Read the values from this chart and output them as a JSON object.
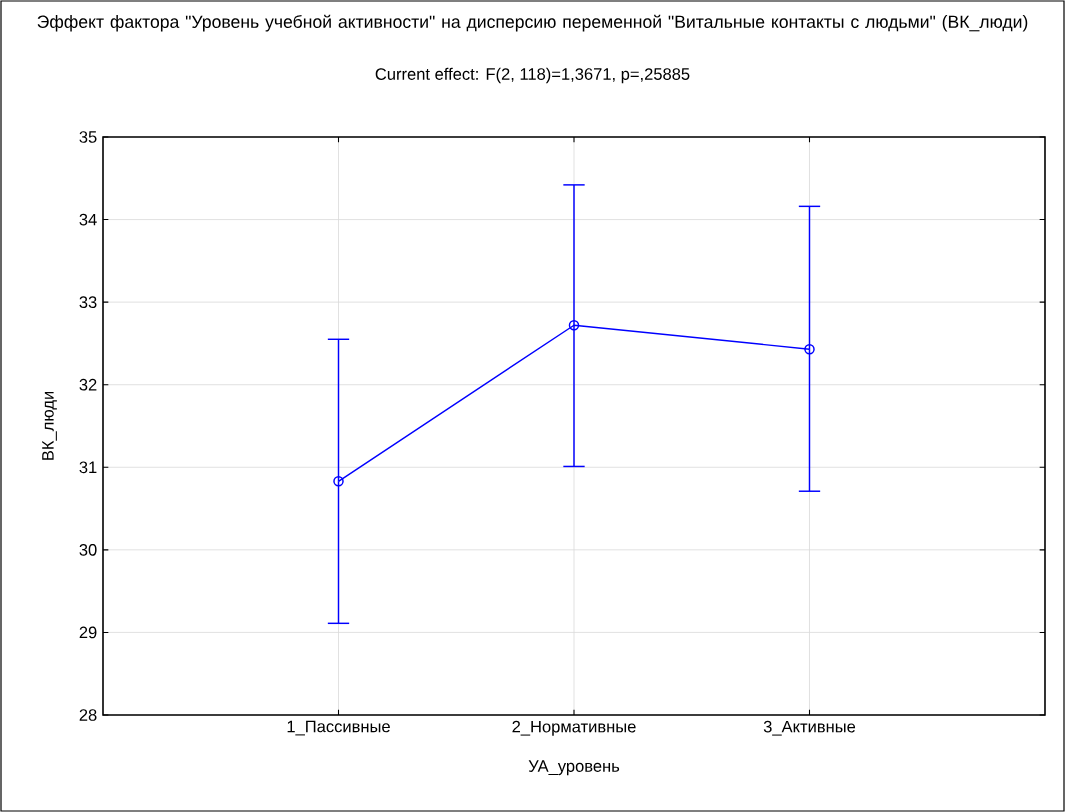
{
  "chart_data": {
    "type": "line",
    "title": "Эффект фактора \"Уровень учебной активности\" на дисперсию переменной \"Витальные контакты с людьми\" (ВК_люди)",
    "subtitle": "Current effect: F(2, 118)=1,3671, p=,25885",
    "xlabel": "УА_уровень",
    "ylabel": "ВК_люди",
    "categories": [
      "1_Пассивные",
      "2_Нормативные",
      "3_Активные"
    ],
    "series": [
      {
        "color": "#0000ff",
        "values": [
          30.83,
          32.72,
          32.43
        ],
        "errors": [
          [
            29.11,
            32.55
          ],
          [
            31.01,
            34.42
          ],
          [
            30.71,
            34.16
          ]
        ]
      }
    ],
    "ylim": [
      28,
      35
    ],
    "yticks": [
      28,
      29,
      30,
      31,
      32,
      33,
      34,
      35
    ],
    "grid": true,
    "marker": "circle",
    "line_style": "solid"
  }
}
